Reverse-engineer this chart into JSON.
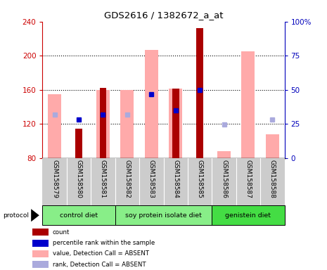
{
  "title": "GDS2616 / 1382672_a_at",
  "samples": [
    "GSM158579",
    "GSM158580",
    "GSM158581",
    "GSM158582",
    "GSM158583",
    "GSM158584",
    "GSM158585",
    "GSM158586",
    "GSM158587",
    "GSM158588"
  ],
  "ylim_left": [
    80,
    240
  ],
  "ylim_right": [
    0,
    100
  ],
  "yticks_left": [
    80,
    120,
    160,
    200,
    240
  ],
  "yticks_right": [
    0,
    25,
    50,
    75,
    100
  ],
  "ytick_labels_right": [
    "0",
    "25",
    "50",
    "75",
    "100%"
  ],
  "pink_bar_values": [
    155,
    null,
    160,
    160,
    207,
    161,
    null,
    88,
    205,
    108
  ],
  "red_bar_values": [
    null,
    114,
    162,
    null,
    null,
    161,
    232,
    null,
    null,
    null
  ],
  "blue_square_values": [
    null,
    125,
    131,
    null,
    155,
    136,
    160,
    null,
    null,
    null
  ],
  "lightblue_square_values": [
    131,
    null,
    null,
    131,
    null,
    null,
    null,
    119,
    null,
    125
  ],
  "group_configs": [
    {
      "start": 0,
      "end": 2,
      "label": "control diet",
      "color": "#88ee88"
    },
    {
      "start": 3,
      "end": 6,
      "label": "soy protein isolate diet",
      "color": "#88ee88"
    },
    {
      "start": 7,
      "end": 9,
      "label": "genistein diet",
      "color": "#44dd44"
    }
  ],
  "colors": {
    "red_bar": "#aa0000",
    "pink_bar": "#ffaaaa",
    "blue_square": "#0000cc",
    "lightblue_square": "#aaaadd",
    "left_axis": "#cc0000",
    "right_axis": "#0000bb",
    "sample_bg": "#cccccc",
    "plot_bg": "#ffffff",
    "group_border": "#000000"
  },
  "legend_items": [
    {
      "label": "count",
      "color": "#aa0000"
    },
    {
      "label": "percentile rank within the sample",
      "color": "#0000cc"
    },
    {
      "label": "value, Detection Call = ABSENT",
      "color": "#ffaaaa"
    },
    {
      "label": "rank, Detection Call = ABSENT",
      "color": "#aaaadd"
    }
  ]
}
